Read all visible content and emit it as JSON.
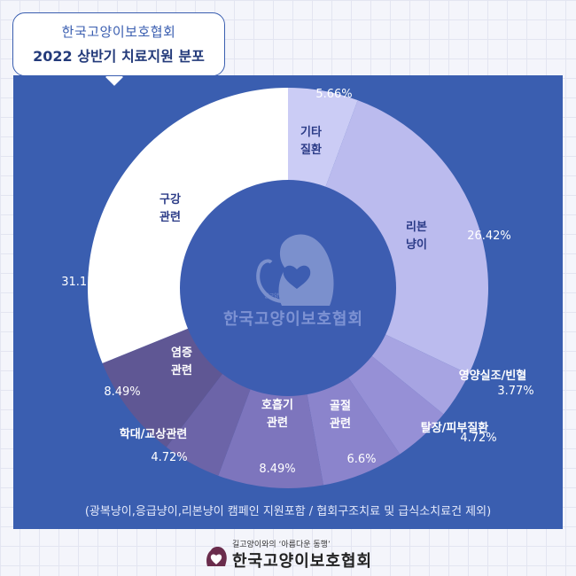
{
  "title": {
    "org": "한국고양이보호협회",
    "main": "2022 상반기 치료지원 분포"
  },
  "chart_data": {
    "type": "pie",
    "title": "2022 상반기 치료지원 분포",
    "slices": [
      {
        "label": [
          "기타",
          "질환"
        ],
        "value": 5.66,
        "value_label": "5.66%",
        "color": "#cbccf5"
      },
      {
        "label": [
          "리본",
          "냥이"
        ],
        "value": 26.42,
        "value_label": "26.42%",
        "color": "#bbbbee"
      },
      {
        "label": [
          "영양실조/빈혈"
        ],
        "value": 3.77,
        "value_label": "3.77%",
        "color": "#a7a4e2"
      },
      {
        "label": [
          "탈장/피부질환"
        ],
        "value": 4.72,
        "value_label": "4.72%",
        "color": "#9690d6"
      },
      {
        "label": [
          "골절",
          "관련"
        ],
        "value": 6.6,
        "value_label": "6.6%",
        "color": "#8b84cc"
      },
      {
        "label": [
          "호흡기",
          "관련"
        ],
        "value": 8.49,
        "value_label": "8.49%",
        "color": "#7d75bd"
      },
      {
        "label": [
          "학대/교상관련"
        ],
        "value": 4.72,
        "value_label": "4.72%",
        "color": "#6c64a8"
      },
      {
        "label": [
          "염증",
          "관련"
        ],
        "value": 8.49,
        "value_label": "8.49%",
        "color": "#5f5794"
      },
      {
        "label": [
          "구강",
          "관련"
        ],
        "value": 31.13,
        "value_label": "31.13%",
        "color": "#ffffff"
      }
    ]
  },
  "watermark": {
    "tagline": "길고양이와의 ‘아름다운 동행’",
    "name": "한국고양이보호협회"
  },
  "footnote": "(광복냥이,응급냥이,리본냥이 캠페인 지원포함 / 협회구조치료 및 급식소치료건 제외)",
  "footer": {
    "tagline": "길고양이와의 ‘아름다운 동행’",
    "name": "한국고양이보호협회"
  },
  "colors": {
    "panel": "#3a5eb0",
    "center": "#3d5db1",
    "label_dark": "#2b3b87",
    "label_light": "#ffffff"
  }
}
